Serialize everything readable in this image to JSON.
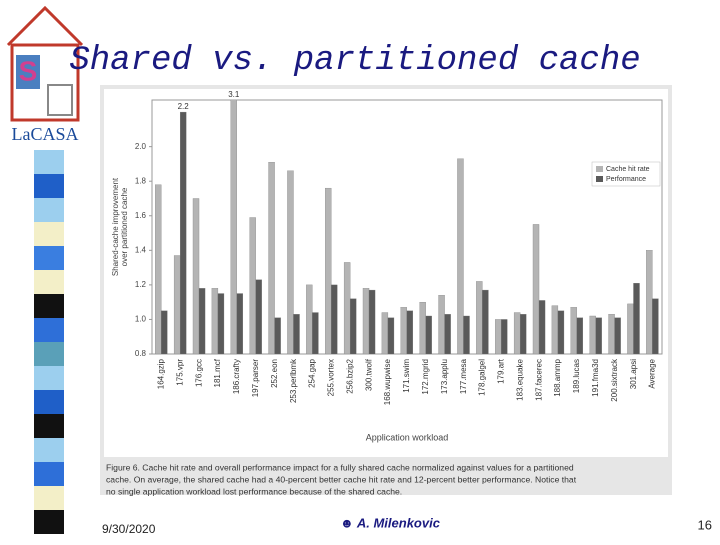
{
  "slide": {
    "title": "Shared vs. partitioned cache",
    "logo_text": "LaCASA",
    "date": "9/30/2020",
    "author": "☻ A. Milenkovic",
    "page_number": "16"
  },
  "figure_caption": [
    "Figure 6. Cache hit rate and overall performance impact for a fully shared cache normalized against values for a partitioned",
    "cache. On average, the shared cache had a 40-percent better cache hit rate and 12-percent better performance. Notice that",
    "no single application workload lost performance because of the shared cache."
  ],
  "chart_data": {
    "type": "bar",
    "x_label": "Application workload",
    "y_label": [
      "Shared-cache improvement",
      "over partitioned cache"
    ],
    "categories": [
      "164.gzip",
      "175.vpr",
      "176.gcc",
      "181.mcf",
      "186.crafty",
      "197.parser",
      "252.eon",
      "253.perlbmk",
      "254.gap",
      "255.vortex",
      "256.bzip2",
      "300.twolf",
      "168.wupwise",
      "171.swim",
      "172.mgrid",
      "173.applu",
      "177.mesa",
      "178.galgel",
      "179.art",
      "183.equake",
      "187.facerec",
      "188.ammp",
      "189.lucas",
      "191.fma3d",
      "200.sixtrack",
      "301.apsi",
      "Average"
    ],
    "series": [
      {
        "name": "Cache hit rate",
        "color": "#b4b4b4",
        "values": [
          1.78,
          1.37,
          1.7,
          1.18,
          3.1,
          1.59,
          1.91,
          1.86,
          1.2,
          1.76,
          1.33,
          1.18,
          1.04,
          1.07,
          1.1,
          1.14,
          1.93,
          1.22,
          1.0,
          1.04,
          1.55,
          1.08,
          1.07,
          1.02,
          1.03,
          1.09,
          1.4
        ],
        "value_labels": [
          null,
          null,
          null,
          null,
          "3.1",
          null,
          null,
          null,
          null,
          null,
          null,
          null,
          null,
          null,
          null,
          null,
          null,
          null,
          null,
          null,
          null,
          null,
          null,
          null,
          null,
          null,
          null
        ]
      },
      {
        "name": "Performance",
        "color": "#5a5a5a",
        "values": [
          1.05,
          2.2,
          1.18,
          1.15,
          1.15,
          1.23,
          1.01,
          1.03,
          1.04,
          1.2,
          1.12,
          1.17,
          1.01,
          1.05,
          1.02,
          1.03,
          1.02,
          1.17,
          1.0,
          1.03,
          1.11,
          1.05,
          1.01,
          1.01,
          1.01,
          1.21,
          1.12
        ],
        "value_labels": [
          null,
          "2.2",
          null,
          null,
          null,
          null,
          null,
          null,
          null,
          null,
          null,
          null,
          null,
          null,
          null,
          null,
          null,
          null,
          null,
          null,
          null,
          null,
          null,
          null,
          null,
          null,
          null
        ]
      }
    ],
    "ylim": [
      0.8,
      2.27
    ],
    "yticks": [
      {
        "value": 0.8,
        "label": "0.8"
      },
      {
        "value": 1.0,
        "label": "1.0"
      },
      {
        "value": 1.2,
        "label": "1.2"
      },
      {
        "value": 1.4,
        "label": "1.4"
      },
      {
        "value": 1.6,
        "label": "1.6"
      },
      {
        "value": 1.8,
        "label": "1.8"
      },
      {
        "value": 2.0,
        "label": "2.0"
      }
    ],
    "grid": false,
    "legend": "upper right"
  }
}
